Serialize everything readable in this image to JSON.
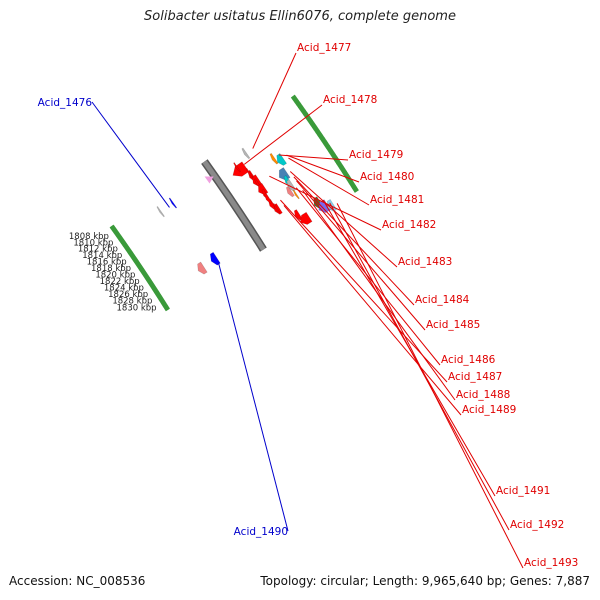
{
  "title": "Solibacter usitatus Ellin6076, complete genome",
  "footer": {
    "accession": "Accession: NC_008536",
    "summary": "Topology: circular; Length: 9,965,640 bp; Genes: 7,887"
  },
  "colors": {
    "backbone": "#8a8a8a",
    "forward_label": "#e00000",
    "reverse_label": "#0000cc",
    "tick_major": "#1a6e1a",
    "tick_minor": "#3a9a3a"
  },
  "ticks": [
    {
      "label": "1808 kbp"
    },
    {
      "label": "1810 kbp"
    },
    {
      "label": "1812 kbp"
    },
    {
      "label": "1814 kbp"
    },
    {
      "label": "1816 kbp"
    },
    {
      "label": "1818 kbp"
    },
    {
      "label": "1820 kbp"
    },
    {
      "label": "1822 kbp"
    },
    {
      "label": "1824 kbp"
    },
    {
      "label": "1826 kbp"
    },
    {
      "label": "1828 kbp"
    },
    {
      "label": "1830 kbp"
    }
  ],
  "genes_forward": [
    {
      "name": "Acid_1477",
      "color": "#b4b4b4"
    },
    {
      "name": "Acid_1478",
      "color": "#ff0000"
    },
    {
      "name": "Acid_1479",
      "color": "#ff8c00"
    },
    {
      "name": "Acid_1480",
      "color": "#00c8c8"
    },
    {
      "name": "Acid_1481",
      "color": "#ff0000"
    },
    {
      "name": "Acid_1482",
      "color": "#ff0000"
    },
    {
      "name": "Acid_1483",
      "color": "#4682b4"
    },
    {
      "name": "Acid_1484",
      "color": "#00c8c8"
    },
    {
      "name": "Acid_1485",
      "color": "#b4b4b4"
    },
    {
      "name": "Acid_1486",
      "color": "#f08080"
    },
    {
      "name": "Acid_1487",
      "color": "#ff0000"
    },
    {
      "name": "Acid_1488",
      "color": "#ff8c00"
    },
    {
      "name": "Acid_1489",
      "color": "#ff0000"
    },
    {
      "name": "Acid_1491",
      "color": "#556b2f"
    },
    {
      "name": "Acid_1492",
      "color": "#7b68ee"
    },
    {
      "name": "Acid_1493",
      "color": "#87ceeb"
    }
  ],
  "genes_reverse": [
    {
      "name": "Acid_1476",
      "color": "#0000ff"
    },
    {
      "name": "Acid_1490",
      "color": "#0000ff"
    }
  ]
}
